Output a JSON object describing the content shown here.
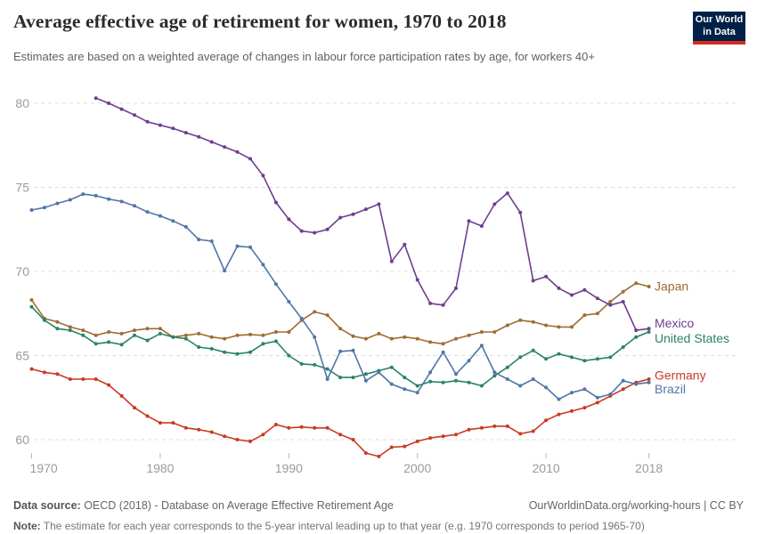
{
  "header": {
    "title": "Average effective age of retirement for women, 1970 to 2018",
    "subtitle": "Estimates are based on a weighted average of changes in labour force participation rates by age, for workers 40+",
    "logo": {
      "line1": "Our World",
      "line2": "in Data",
      "bg_color": "#002147",
      "stripe_color": "#d42b20"
    }
  },
  "chart_data": {
    "type": "line",
    "title": "Average effective age of retirement for women, 1970 to 2018",
    "xlabel": "",
    "ylabel": "",
    "x_ticks": [
      1970,
      1980,
      1990,
      2000,
      2010,
      2018
    ],
    "y_ticks": [
      60,
      65,
      70,
      75,
      80
    ],
    "ylim": [
      59,
      81
    ],
    "xlim": [
      1970,
      2018
    ],
    "grid": "horizontal-dashed",
    "grid_color": "#dcdcdc",
    "axis_label_color": "#9a9a9a",
    "tick_mark_color": "#b5b5b5",
    "legend_position": "right-of-line-ends",
    "years": [
      1970,
      1971,
      1972,
      1973,
      1974,
      1975,
      1976,
      1977,
      1978,
      1979,
      1980,
      1981,
      1982,
      1983,
      1984,
      1985,
      1986,
      1987,
      1988,
      1989,
      1990,
      1991,
      1992,
      1993,
      1994,
      1995,
      1996,
      1997,
      1998,
      1999,
      2000,
      2001,
      2002,
      2003,
      2004,
      2005,
      2006,
      2007,
      2008,
      2009,
      2010,
      2011,
      2012,
      2013,
      2014,
      2015,
      2016,
      2017,
      2018
    ],
    "series": [
      {
        "name": "Japan",
        "color": "#9e6d34",
        "values": [
          68.3,
          67.2,
          67.0,
          66.7,
          66.5,
          66.2,
          66.4,
          66.3,
          66.5,
          66.6,
          66.6,
          66.1,
          66.2,
          66.3,
          66.1,
          66.0,
          66.2,
          66.25,
          66.2,
          66.4,
          66.4,
          67.1,
          67.6,
          67.4,
          66.6,
          66.15,
          66.0,
          66.3,
          66.0,
          66.1,
          66.0,
          65.8,
          65.7,
          66.0,
          66.2,
          66.4,
          66.4,
          66.8,
          67.1,
          67.0,
          66.8,
          66.7,
          66.7,
          67.4,
          67.5,
          68.2,
          68.8,
          69.3,
          69.1
        ]
      },
      {
        "name": "Mexico",
        "color": "#6d3e91",
        "values": [
          null,
          null,
          null,
          null,
          null,
          80.3,
          80.0,
          79.65,
          79.3,
          78.9,
          78.7,
          78.5,
          78.25,
          78.0,
          77.7,
          77.4,
          77.1,
          76.7,
          75.7,
          74.1,
          73.1,
          72.4,
          72.3,
          72.5,
          73.2,
          73.4,
          73.7,
          74.0,
          70.6,
          71.6,
          69.5,
          68.1,
          68.0,
          69.0,
          73.0,
          72.7,
          74.0,
          74.65,
          73.5,
          69.45,
          69.7,
          69.0,
          68.6,
          68.9,
          68.4,
          68.0,
          68.2,
          66.5,
          66.6
        ]
      },
      {
        "name": "United States",
        "color": "#2a8465",
        "values": [
          67.9,
          67.1,
          66.6,
          66.5,
          66.2,
          65.7,
          65.8,
          65.65,
          66.2,
          65.9,
          66.3,
          66.1,
          66.0,
          65.5,
          65.4,
          65.2,
          65.1,
          65.2,
          65.7,
          65.85,
          65.0,
          64.5,
          64.45,
          64.2,
          63.7,
          63.7,
          63.9,
          64.1,
          64.3,
          63.7,
          63.2,
          63.45,
          63.4,
          63.5,
          63.4,
          63.2,
          63.8,
          64.3,
          64.9,
          65.3,
          64.8,
          65.1,
          64.9,
          64.7,
          64.8,
          64.9,
          65.5,
          66.1,
          66.4
        ]
      },
      {
        "name": "Germany",
        "color": "#c93a22",
        "values": [
          64.2,
          64.0,
          63.9,
          63.6,
          63.6,
          63.6,
          63.25,
          62.6,
          61.9,
          61.4,
          61.0,
          61.0,
          60.7,
          60.6,
          60.45,
          60.2,
          60.0,
          59.9,
          60.3,
          60.9,
          60.7,
          60.75,
          60.7,
          60.7,
          60.3,
          60.0,
          59.2,
          59.0,
          59.55,
          59.6,
          59.9,
          60.1,
          60.2,
          60.3,
          60.6,
          60.7,
          60.8,
          60.8,
          60.35,
          60.5,
          61.15,
          61.5,
          61.7,
          61.9,
          62.2,
          62.6,
          63.0,
          63.4,
          63.6
        ]
      },
      {
        "name": "Brazil",
        "color": "#5176a6",
        "values": [
          73.65,
          73.8,
          74.05,
          74.26,
          74.6,
          74.5,
          74.3,
          74.16,
          73.9,
          73.54,
          73.3,
          73.0,
          72.65,
          71.9,
          71.8,
          70.05,
          71.5,
          71.44,
          70.4,
          69.25,
          68.2,
          67.2,
          66.1,
          63.6,
          65.25,
          65.3,
          63.5,
          64.0,
          63.3,
          63.0,
          62.8,
          64.0,
          65.2,
          63.9,
          64.7,
          65.6,
          64.0,
          63.6,
          63.2,
          63.6,
          63.1,
          62.4,
          62.8,
          63.0,
          62.5,
          62.7,
          63.5,
          63.3,
          63.4
        ]
      }
    ]
  },
  "footer": {
    "source_label": "Data source:",
    "source_text": " OECD (2018) - Database on Average Effective Retirement Age",
    "link_text": "OurWorldinData.org/working-hours | CC BY",
    "note_label": "Note:",
    "note_text": " The estimate for each year corresponds to the 5-year interval leading up to that year (e.g. 1970 corresponds to period 1965-70)"
  }
}
